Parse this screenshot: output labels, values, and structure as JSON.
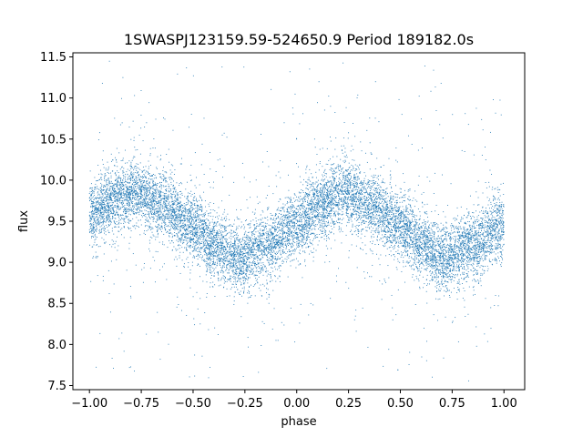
{
  "chart_data": {
    "type": "scatter",
    "title": "1SWASPJ123159.59-524650.9 Period 189182.0s",
    "xlabel": "phase",
    "ylabel": "flux",
    "xlim": [
      -1.08,
      1.1
    ],
    "ylim": [
      7.45,
      11.55
    ],
    "xticks": [
      -1.0,
      -0.75,
      -0.5,
      -0.25,
      0.0,
      0.25,
      0.5,
      0.75,
      1.0
    ],
    "xtick_labels": [
      "−1.00",
      "−0.75",
      "−0.50",
      "−0.25",
      "0.00",
      "0.25",
      "0.50",
      "0.75",
      "1.00"
    ],
    "yticks": [
      7.5,
      8.0,
      8.5,
      9.0,
      9.5,
      10.0,
      10.5,
      11.0,
      11.5
    ],
    "ytick_labels": [
      "7.5",
      "8.0",
      "8.5",
      "9.0",
      "9.5",
      "10.0",
      "10.5",
      "11.0",
      "11.5"
    ],
    "grid": false,
    "legend": "none",
    "marker_color": "#1f77b4",
    "series": [
      {
        "points_approx_count": 12000,
        "x_range": [
          -1.0,
          1.0
        ],
        "trend": [
          {
            "x": -1.0,
            "y": 9.55
          },
          {
            "x": -0.9,
            "y": 9.75
          },
          {
            "x": -0.78,
            "y": 9.85
          },
          {
            "x": -0.65,
            "y": 9.7
          },
          {
            "x": -0.5,
            "y": 9.45
          },
          {
            "x": -0.4,
            "y": 9.2
          },
          {
            "x": -0.28,
            "y": 9.05
          },
          {
            "x": -0.15,
            "y": 9.2
          },
          {
            "x": 0.0,
            "y": 9.45
          },
          {
            "x": 0.1,
            "y": 9.7
          },
          {
            "x": 0.22,
            "y": 9.85
          },
          {
            "x": 0.35,
            "y": 9.7
          },
          {
            "x": 0.5,
            "y": 9.45
          },
          {
            "x": 0.6,
            "y": 9.2
          },
          {
            "x": 0.72,
            "y": 9.05
          },
          {
            "x": 0.85,
            "y": 9.2
          },
          {
            "x": 1.0,
            "y": 9.45
          }
        ],
        "scatter_sd": 0.2
      }
    ]
  }
}
